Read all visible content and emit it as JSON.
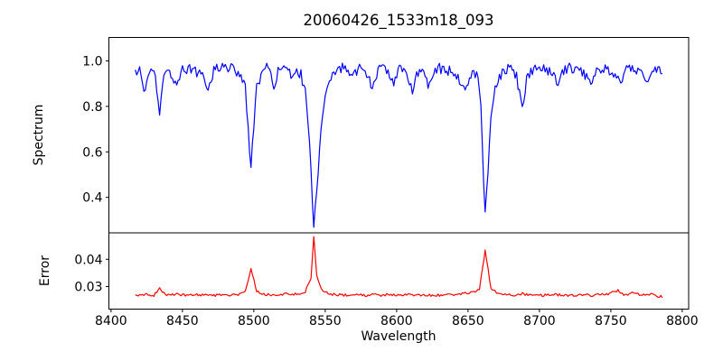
{
  "figure": {
    "title": "20060426_1533m18_093",
    "xlabel": "Wavelength",
    "background": "#ffffff",
    "text_color": "#000000",
    "axis_color": "#000000",
    "xlim": [
      8398.5,
      8804.5
    ],
    "xticks": [
      8400,
      8450,
      8500,
      8550,
      8600,
      8650,
      8700,
      8750,
      8800
    ],
    "xtick_labels": [
      "8400",
      "8450",
      "8500",
      "8550",
      "8600",
      "8650",
      "8700",
      "8750",
      "8800"
    ]
  },
  "chart_data": [
    {
      "type": "line",
      "name": "spectrum",
      "ylabel": "Spectrum",
      "color": "#0000ff",
      "line_width": 1.2,
      "legend": "none",
      "grid": false,
      "xlim": [
        8398.5,
        8804.5
      ],
      "ylim": [
        0.244,
        1.103
      ],
      "yticks": [
        1.0,
        0.8,
        0.6,
        0.4
      ],
      "ytick_labels": [
        "1.0",
        "0.8",
        "0.6",
        "0.4"
      ],
      "x": [
        8417,
        8420,
        8424,
        8427,
        8431,
        8434,
        8437,
        8441,
        8445,
        8450,
        8455,
        8460,
        8465,
        8468,
        8472,
        8477,
        8482,
        8487,
        8491,
        8494,
        8496,
        8498,
        8500,
        8502,
        8505,
        8509,
        8512,
        8514,
        8517,
        8520,
        8524,
        8527,
        8530,
        8533,
        8536,
        8539,
        8541,
        8542,
        8544,
        8546,
        8548,
        8551,
        8554,
        8558,
        8562,
        8566,
        8570,
        8575,
        8579,
        8583,
        8587,
        8592,
        8598,
        8602,
        8607,
        8611,
        8614,
        8618,
        8622,
        8626,
        8630,
        8634,
        8638,
        8642,
        8645,
        8648,
        8651,
        8654,
        8657,
        8659,
        8661,
        8662,
        8664,
        8666,
        8669,
        8672,
        8676,
        8680,
        8684,
        8688,
        8691,
        8695,
        8700,
        8705,
        8709,
        8713,
        8717,
        8722,
        8727,
        8732,
        8736,
        8740,
        8745,
        8750,
        8754,
        8757,
        8761,
        8766,
        8770,
        8773,
        8776,
        8780,
        8783,
        8786
      ],
      "y": [
        0.94,
        0.96,
        0.86,
        0.95,
        0.93,
        0.77,
        0.93,
        0.96,
        0.9,
        0.96,
        0.97,
        0.95,
        0.93,
        0.87,
        0.96,
        0.98,
        0.97,
        0.96,
        0.94,
        0.88,
        0.7,
        0.52,
        0.72,
        0.88,
        0.94,
        0.97,
        0.93,
        0.88,
        0.95,
        0.99,
        0.97,
        0.91,
        0.96,
        0.94,
        0.86,
        0.66,
        0.38,
        0.29,
        0.42,
        0.62,
        0.76,
        0.86,
        0.92,
        0.95,
        0.97,
        0.96,
        0.95,
        0.97,
        0.94,
        0.88,
        0.96,
        0.97,
        0.91,
        0.96,
        0.95,
        0.87,
        0.95,
        0.96,
        0.9,
        0.96,
        0.97,
        0.95,
        0.96,
        0.94,
        0.91,
        0.86,
        0.93,
        0.95,
        0.93,
        0.8,
        0.45,
        0.32,
        0.5,
        0.76,
        0.89,
        0.93,
        0.96,
        0.97,
        0.93,
        0.78,
        0.92,
        0.96,
        0.97,
        0.96,
        0.94,
        0.89,
        0.96,
        0.97,
        0.96,
        0.94,
        0.91,
        0.96,
        0.97,
        0.95,
        0.92,
        0.9,
        0.96,
        0.97,
        0.95,
        0.93,
        0.92,
        0.96,
        0.97,
        0.96
      ],
      "noise_amplitude": 0.022,
      "noise_seed": 12345,
      "sample_step": 1
    },
    {
      "type": "line",
      "name": "error",
      "ylabel": "Error",
      "color": "#ff0000",
      "line_width": 1.2,
      "legend": "none",
      "grid": false,
      "xlim": [
        8398.5,
        8804.5
      ],
      "ylim": [
        0.0217,
        0.0497
      ],
      "yticks": [
        0.04,
        0.03
      ],
      "ytick_labels": [
        "0.04",
        "0.03"
      ],
      "x": [
        8417,
        8424,
        8430,
        8434,
        8438,
        8445,
        8452,
        8460,
        8465,
        8470,
        8477,
        8484,
        8490,
        8494,
        8498,
        8502,
        8506,
        8512,
        8518,
        8524,
        8530,
        8536,
        8540,
        8542,
        8544,
        8548,
        8553,
        8560,
        8566,
        8572,
        8578,
        8584,
        8590,
        8596,
        8602,
        8608,
        8614,
        8620,
        8626,
        8632,
        8638,
        8644,
        8650,
        8655,
        8658,
        8662,
        8666,
        8670,
        8676,
        8682,
        8688,
        8694,
        8700,
        8706,
        8712,
        8718,
        8724,
        8730,
        8736,
        8742,
        8748,
        8752,
        8755,
        8758,
        8762,
        8766,
        8770,
        8774,
        8778,
        8782,
        8786
      ],
      "y": [
        0.0265,
        0.0272,
        0.0268,
        0.0295,
        0.027,
        0.0272,
        0.0268,
        0.0271,
        0.0268,
        0.0267,
        0.027,
        0.0268,
        0.0272,
        0.0285,
        0.0365,
        0.0285,
        0.0272,
        0.027,
        0.0268,
        0.0274,
        0.0271,
        0.0282,
        0.033,
        0.0482,
        0.034,
        0.0285,
        0.0273,
        0.0269,
        0.0268,
        0.027,
        0.0267,
        0.027,
        0.0268,
        0.0271,
        0.0267,
        0.027,
        0.0268,
        0.0269,
        0.0267,
        0.0269,
        0.0268,
        0.0272,
        0.0276,
        0.028,
        0.029,
        0.0435,
        0.0295,
        0.0275,
        0.027,
        0.0268,
        0.0273,
        0.0268,
        0.0267,
        0.0269,
        0.027,
        0.0267,
        0.0268,
        0.0269,
        0.0267,
        0.027,
        0.0272,
        0.028,
        0.0285,
        0.0273,
        0.027,
        0.028,
        0.0269,
        0.0272,
        0.0273,
        0.0266,
        0.0262
      ],
      "noise_amplitude": 0.00045,
      "noise_seed": 999,
      "sample_step": 1
    }
  ]
}
